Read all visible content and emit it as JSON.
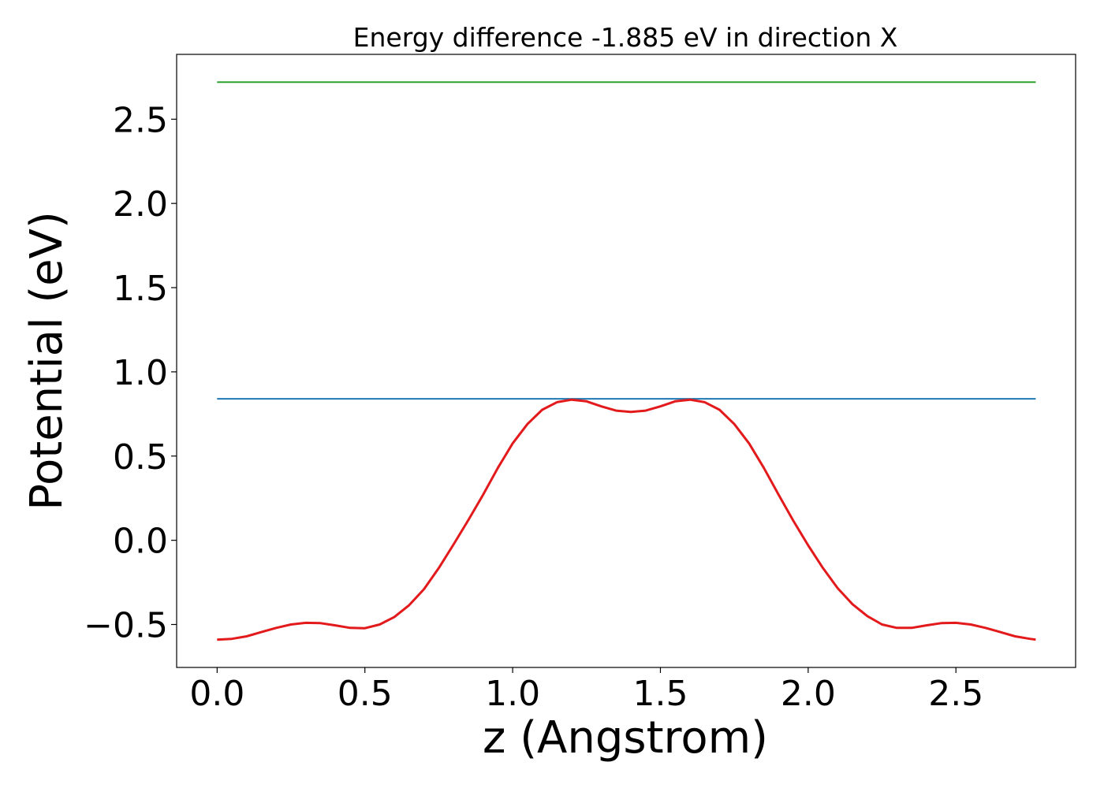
{
  "chart_data": {
    "type": "line",
    "title": "Energy difference -1.885 eV in direction X",
    "xlabel": "z (Angstrom)",
    "ylabel": "Potential (eV)",
    "xlim": [
      -0.137,
      2.905
    ],
    "ylim": [
      -0.755,
      2.885
    ],
    "grid": false,
    "xticks": [
      {
        "value": 0.0,
        "label": "0.0"
      },
      {
        "value": 0.5,
        "label": "0.5"
      },
      {
        "value": 1.0,
        "label": "1.0"
      },
      {
        "value": 1.5,
        "label": "1.5"
      },
      {
        "value": 2.0,
        "label": "2.0"
      },
      {
        "value": 2.5,
        "label": "2.5"
      }
    ],
    "yticks": [
      {
        "value": -0.5,
        "label": "−0.5"
      },
      {
        "value": 0.0,
        "label": "0.0"
      },
      {
        "value": 0.5,
        "label": "0.5"
      },
      {
        "value": 1.0,
        "label": "1.0"
      },
      {
        "value": 1.5,
        "label": "1.5"
      },
      {
        "value": 2.0,
        "label": "2.0"
      },
      {
        "value": 2.5,
        "label": "2.5"
      }
    ],
    "series": [
      {
        "color": "#2ca02c",
        "x": [
          0.0,
          2.77
        ],
        "y": [
          2.72,
          2.72
        ]
      },
      {
        "color": "#1f77b4",
        "x": [
          0.0,
          2.77
        ],
        "y": [
          0.84,
          0.84
        ]
      },
      {
        "color": "#e31a1c",
        "x": [
          0.0,
          0.05,
          0.1,
          0.15,
          0.2,
          0.25,
          0.3,
          0.35,
          0.4,
          0.45,
          0.5,
          0.55,
          0.6,
          0.65,
          0.7,
          0.75,
          0.8,
          0.85,
          0.9,
          0.95,
          1.0,
          1.05,
          1.1,
          1.15,
          1.2,
          1.25,
          1.3,
          1.35,
          1.4,
          1.45,
          1.5,
          1.55,
          1.6,
          1.65,
          1.7,
          1.75,
          1.8,
          1.85,
          1.9,
          1.95,
          2.0,
          2.05,
          2.1,
          2.15,
          2.2,
          2.25,
          2.3,
          2.35,
          2.4,
          2.45,
          2.5,
          2.55,
          2.6,
          2.65,
          2.7,
          2.75,
          2.77
        ],
        "y": [
          -0.59,
          -0.585,
          -0.57,
          -0.545,
          -0.52,
          -0.5,
          -0.49,
          -0.492,
          -0.505,
          -0.52,
          -0.522,
          -0.5,
          -0.455,
          -0.385,
          -0.29,
          -0.165,
          -0.025,
          0.12,
          0.27,
          0.43,
          0.575,
          0.69,
          0.775,
          0.82,
          0.835,
          0.825,
          0.795,
          0.77,
          0.762,
          0.77,
          0.795,
          0.825,
          0.835,
          0.82,
          0.775,
          0.69,
          0.575,
          0.43,
          0.27,
          0.115,
          -0.03,
          -0.165,
          -0.285,
          -0.38,
          -0.45,
          -0.5,
          -0.52,
          -0.52,
          -0.505,
          -0.492,
          -0.49,
          -0.5,
          -0.52,
          -0.545,
          -0.57,
          -0.585,
          -0.59
        ]
      }
    ]
  }
}
